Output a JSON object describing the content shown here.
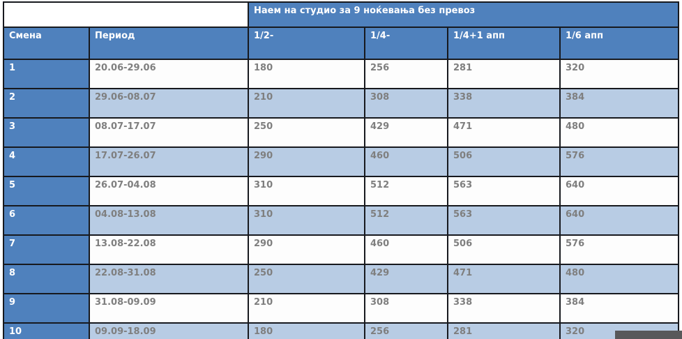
{
  "banner": {
    "title": "Наем на студио за 9 ноќевања без превоз"
  },
  "table": {
    "columns": [
      "Смена",
      "Период",
      "1/2-",
      "1/4-",
      "1/4+1 апп",
      "1/6 апп"
    ],
    "rows": [
      {
        "smena": "1",
        "period": "20.06-29.06",
        "values": [
          "180",
          "256",
          "281",
          "320"
        ]
      },
      {
        "smena": "2",
        "period": "29.06-08.07",
        "values": [
          "210",
          "308",
          "338",
          "384"
        ]
      },
      {
        "smena": "3",
        "period": "08.07-17.07",
        "values": [
          "250",
          "429",
          "471",
          "480"
        ]
      },
      {
        "smena": "4",
        "period": "17.07-26.07",
        "values": [
          "290",
          "460",
          "506",
          "576"
        ]
      },
      {
        "smena": "5",
        "period": "26.07-04.08",
        "values": [
          "310",
          "512",
          "563",
          "640"
        ]
      },
      {
        "smena": "6",
        "period": "04.08-13.08",
        "values": [
          "310",
          "512",
          "563",
          "640"
        ]
      },
      {
        "smena": "7",
        "period": "13.08-22.08",
        "values": [
          "290",
          "460",
          "506",
          "576"
        ]
      },
      {
        "smena": "8",
        "period": "22.08-31.08",
        "values": [
          "250",
          "429",
          "471",
          "480"
        ]
      },
      {
        "smena": "9",
        "period": "31.08-09.09",
        "values": [
          "210",
          "308",
          "338",
          "384"
        ]
      },
      {
        "smena": "10",
        "period": "09.09-18.09",
        "values": [
          "180",
          "256",
          "281",
          "320"
        ]
      }
    ]
  },
  "colors": {
    "header_blue": "#4f81bd",
    "row_alt_blue": "#b8cce4",
    "row_white": "#fdfdfd",
    "border": "#17191e",
    "data_text": "#7f7f7f",
    "overlay_dark": "#58585a"
  }
}
